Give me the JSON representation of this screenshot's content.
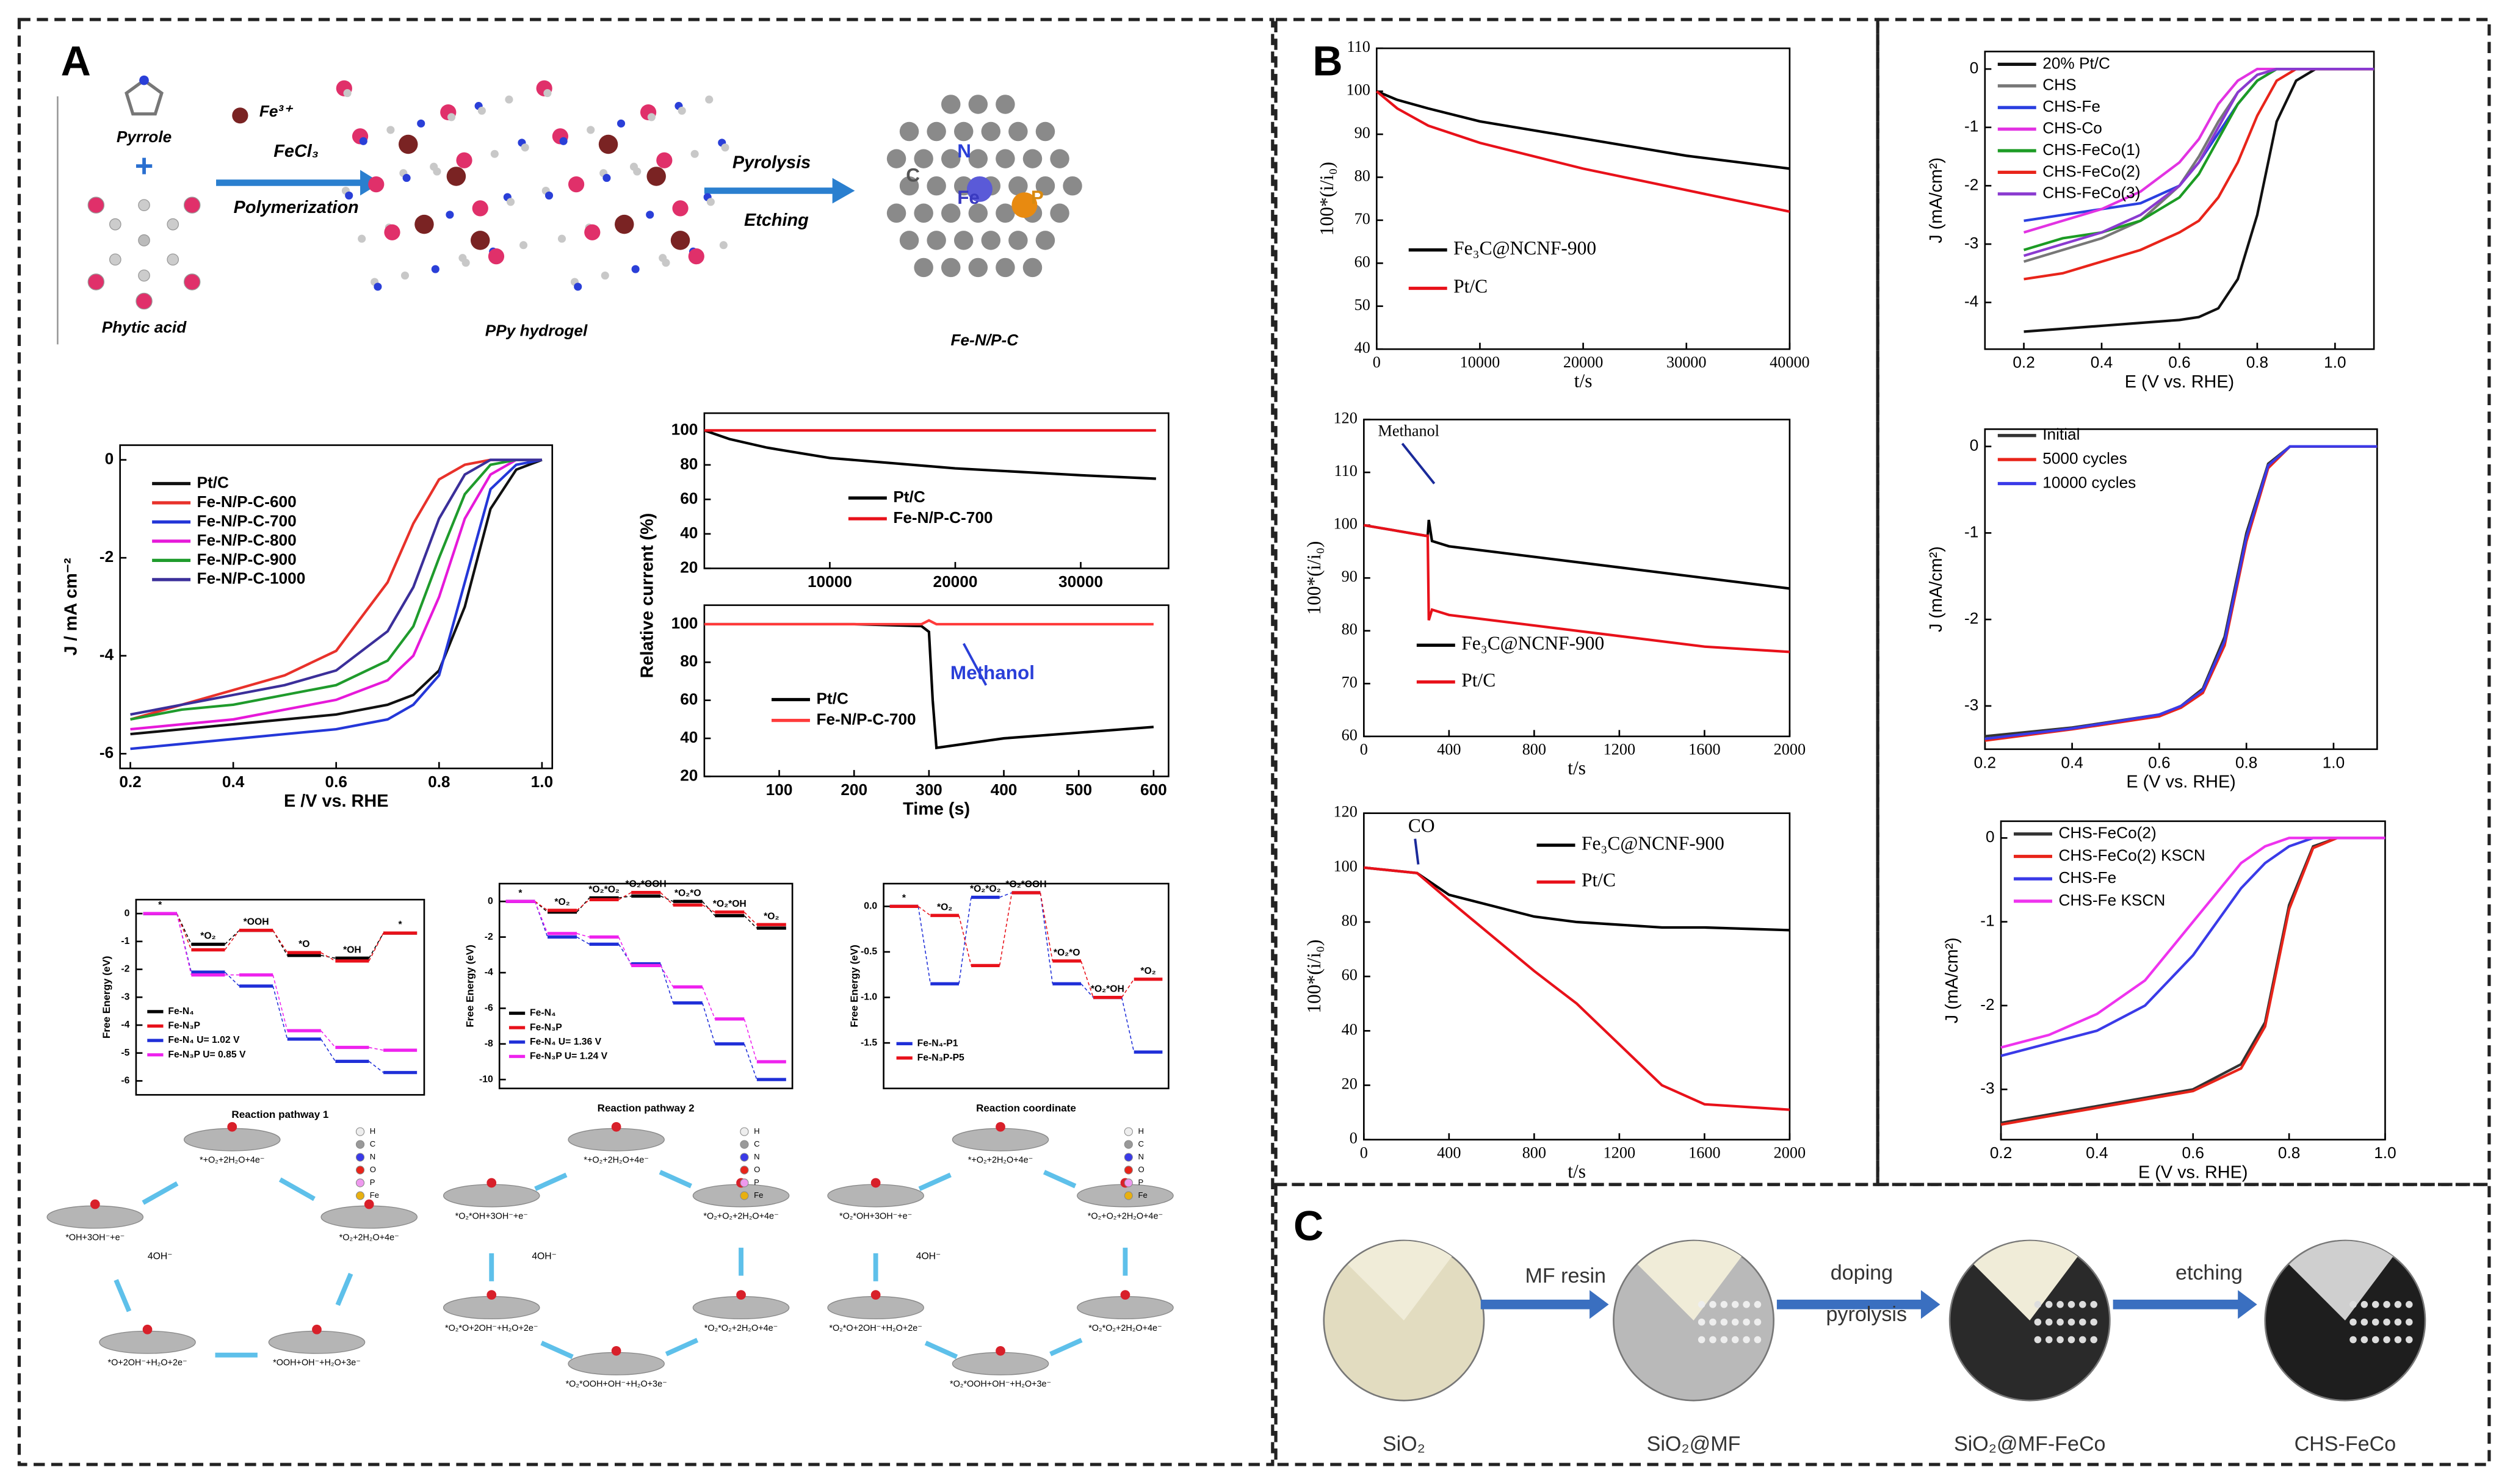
{
  "panel_labels": [
    "A",
    "B",
    "C"
  ],
  "scheme_a": {
    "pyrrole": "Pyrrole",
    "phytic_acid": "Phytic acid",
    "fe_ion": "Fe³⁺",
    "reagent": "FeCl₃",
    "step1": "Polymerization",
    "intermediate": "PPy hydrogel",
    "step2a": "Pyrolysis",
    "step2b": "Etching",
    "product": "Fe-N/P-C",
    "atoms": [
      "C",
      "N",
      "Fe",
      "P"
    ]
  },
  "elements": [
    "H",
    "C",
    "N",
    "O",
    "P",
    "Fe"
  ],
  "cycles": [
    {
      "center": "4OH⁻",
      "states": [
        "*+O₂+2H₂O+4e⁻",
        "*O₂+2H₂O+4e⁻",
        "*OOH+OH⁻+H₂O+3e⁻",
        "*O+2OH⁻+H₂O+2e⁻",
        "*OH+3OH⁻+e⁻"
      ]
    },
    {
      "center": "4OH⁻",
      "states": [
        "*+O₂+2H₂O+4e⁻",
        "*O₂+O₂+2H₂O+4e⁻",
        "*O₂*O₂+2H₂O+4e⁻",
        "*O₂*OOH+OH⁻+H₂O+3e⁻",
        "*O₂*O+2OH⁻+H₂O+2e⁻",
        "*O₂*OH+3OH⁻+e⁻"
      ]
    },
    {
      "center": "4OH⁻",
      "states": [
        "*+O₂+2H₂O+4e⁻",
        "*O₂+O₂+2H₂O+4e⁻",
        "*O₂*O₂+2H₂O+4e⁻",
        "*O₂*OOH+OH⁻+H₂O+3e⁻",
        "*O₂*O+2OH⁻+H₂O+2e⁻",
        "*O₂*OH+3OH⁻+e⁻"
      ]
    }
  ],
  "scheme_c": {
    "stages": [
      "SiO₂",
      "SiO₂@MF",
      "SiO₂@MF-FeCo",
      "CHS-FeCo"
    ],
    "steps": [
      "MF resin",
      "doping",
      "pyrolysis",
      "etching"
    ]
  },
  "chart_data": [
    {
      "type": "line",
      "xlabel": "E /V vs. RHE",
      "ylabel": "J / mA cm⁻²",
      "xlim": [
        0.18,
        1.02
      ],
      "ylim": [
        -6.3,
        0.3
      ],
      "xticks": [
        0.2,
        0.4,
        0.6,
        0.8,
        {
          "value": 1,
          "label": "1.0"
        }
      ],
      "yticks": [
        -6,
        -4,
        -2,
        0
      ],
      "x": [
        0.2,
        0.3,
        0.4,
        0.5,
        0.6,
        0.7,
        0.75,
        0.8,
        0.85,
        0.9,
        0.95,
        1.0
      ],
      "series": [
        {
          "name": "Pt/C",
          "color": "#111111",
          "values": [
            -5.6,
            -5.5,
            -5.4,
            -5.3,
            -5.2,
            -5.0,
            -4.8,
            -4.3,
            -3.0,
            -1.0,
            -0.2,
            0
          ]
        },
        {
          "name": "Fe-N/P-C-600",
          "color": "#e8312a",
          "values": [
            -5.3,
            -5.0,
            -4.7,
            -4.4,
            -3.9,
            -2.5,
            -1.3,
            -0.4,
            -0.1,
            0,
            0,
            0
          ]
        },
        {
          "name": "Fe-N/P-C-700",
          "color": "#2437d8",
          "values": [
            -5.9,
            -5.8,
            -5.7,
            -5.6,
            -5.5,
            -5.3,
            -5.0,
            -4.4,
            -2.5,
            -0.6,
            -0.1,
            0
          ]
        },
        {
          "name": "Fe-N/P-C-800",
          "color": "#e619d9",
          "values": [
            -5.5,
            -5.4,
            -5.3,
            -5.1,
            -4.9,
            -4.5,
            -4.0,
            -2.8,
            -1.2,
            -0.3,
            0,
            0
          ]
        },
        {
          "name": "Fe-N/P-C-900",
          "color": "#1f9b2c",
          "values": [
            -5.3,
            -5.1,
            -5.0,
            -4.8,
            -4.6,
            -4.1,
            -3.4,
            -2.0,
            -0.7,
            -0.1,
            0,
            0
          ]
        },
        {
          "name": "Fe-N/P-C-1000",
          "color": "#3b2f9a",
          "values": [
            -5.2,
            -5.0,
            -4.8,
            -4.6,
            -4.3,
            -3.5,
            -2.6,
            -1.2,
            -0.3,
            0,
            0,
            0
          ]
        }
      ],
      "legend": "upper left"
    },
    {
      "type": "line",
      "xlim": [
        0,
        37000
      ],
      "ylim": [
        20,
        110
      ],
      "xticks": [
        10000,
        20000,
        30000
      ],
      "yticks": [
        20,
        40,
        60,
        80,
        100
      ],
      "x": [
        0,
        2000,
        5000,
        10000,
        20000,
        30000,
        36000
      ],
      "series": [
        {
          "name": "Pt/C",
          "color": "#000000",
          "values": [
            100,
            95,
            90,
            84,
            78,
            74,
            72
          ]
        },
        {
          "name": "Fe-N/P-C-700",
          "color": "#e8111a",
          "values": [
            100,
            100,
            100,
            100,
            100,
            100,
            100
          ]
        }
      ],
      "legend": "center"
    },
    {
      "type": "line",
      "xlabel": "Time (s)",
      "ylabel": "Relative current (%)",
      "annotation": "Methanol",
      "xlim": [
        0,
        620
      ],
      "ylim": [
        20,
        110
      ],
      "xticks": [
        100,
        200,
        300,
        400,
        500,
        600
      ],
      "yticks": [
        20,
        40,
        60,
        80,
        100
      ],
      "x": [
        0,
        100,
        200,
        290,
        300,
        305,
        310,
        400,
        500,
        600
      ],
      "series": [
        {
          "name": "Pt/C",
          "color": "#000000",
          "values": [
            100,
            100,
            100,
            99,
            96,
            60,
            35,
            40,
            43,
            46
          ]
        },
        {
          "name": "Fe-N/P-C-700",
          "color": "#ff3b3b",
          "values": [
            100,
            100,
            100,
            100,
            102,
            101,
            100,
            100,
            100,
            100
          ]
        }
      ],
      "legend": "lower left"
    },
    {
      "type": "step",
      "xlabel": "Reaction pathway 1",
      "ylabel": "Free Energy (eV)",
      "ylim": [
        -6.5,
        0.5
      ],
      "yticks": [
        -6,
        -5,
        -4,
        -3,
        -2,
        -1,
        0
      ],
      "categories": [
        "*",
        "*O₂",
        "*OOH",
        "*O",
        "*OH",
        "*"
      ],
      "series": [
        {
          "name": "Fe-N₄",
          "color": "#000000",
          "values": [
            0,
            -1.1,
            -0.6,
            -1.5,
            -1.6,
            -0.7
          ]
        },
        {
          "name": "Fe-N₃P",
          "color": "#e8111a",
          "values": [
            0,
            -1.3,
            -0.6,
            -1.4,
            -1.7,
            -0.7
          ]
        },
        {
          "name": "Fe-N₄ U= 1.02 V",
          "color": "#1f2fd8",
          "values": [
            0,
            -2.1,
            -2.6,
            -4.5,
            -5.3,
            -5.7
          ]
        },
        {
          "name": "Fe-N₃P U= 0.85 V",
          "color": "#ee22ee",
          "values": [
            0,
            -2.2,
            -2.2,
            -4.2,
            -4.8,
            -4.9
          ]
        }
      ],
      "legend": "lower left"
    },
    {
      "type": "step",
      "xlabel": "Reaction pathway 2",
      "ylabel": "Free Energy (eV)",
      "ylim": [
        -10.5,
        1
      ],
      "yticks": [
        -10,
        -8,
        -6,
        -4,
        -2,
        0
      ],
      "categories": [
        "*",
        "*O₂",
        "*O₂*O₂",
        "*O₂*OOH",
        "*O₂*O",
        "*O₂*OH",
        "*O₂"
      ],
      "series": [
        {
          "name": "Fe-N₄",
          "color": "#000000",
          "values": [
            0,
            -0.6,
            0.2,
            0.3,
            0,
            -0.8,
            -1.5
          ]
        },
        {
          "name": "Fe-N₃P",
          "color": "#e8111a",
          "values": [
            0,
            -0.5,
            0.1,
            0.5,
            -0.2,
            -0.6,
            -1.3
          ]
        },
        {
          "name": "Fe-N₄ U= 1.36 V",
          "color": "#1f2fd8",
          "values": [
            0,
            -2.0,
            -2.4,
            -3.5,
            -5.7,
            -8.0,
            -10.0
          ]
        },
        {
          "name": "Fe-N₃P U= 1.24 V",
          "color": "#ee22ee",
          "values": [
            0,
            -1.8,
            -2.0,
            -3.6,
            -4.8,
            -6.6,
            -9.0
          ]
        }
      ],
      "legend": "lower left"
    },
    {
      "type": "step",
      "xlabel": "Reaction coordinate",
      "ylabel": "Free Energy (eV)",
      "ylim": [
        -2,
        0.25
      ],
      "yticks": [
        {
          "value": 0,
          "label": "0.0"
        },
        -0.5,
        {
          "value": -1,
          "label": "-1.0"
        },
        -1.5
      ],
      "categories": [
        "*",
        "*O₂",
        "*O₂*O₂",
        "*O₂*OOH",
        "*O₂*O",
        "*O₂*OH",
        "*O₂"
      ],
      "series": [
        {
          "name": "Fe-N₄-P1",
          "color": "#1f2fd8",
          "values": [
            0,
            -0.85,
            0.1,
            0.15,
            -0.85,
            -1.0,
            -1.6
          ]
        },
        {
          "name": "Fe-N₃P-P5",
          "color": "#e8111a",
          "values": [
            0,
            -0.1,
            -0.65,
            0.15,
            -0.6,
            -1.0,
            -0.8
          ]
        }
      ],
      "legend": "lower left"
    },
    {
      "type": "line",
      "xlabel": "t/s",
      "ylabel": "100*(i/i₀)",
      "xlim": [
        0,
        40000
      ],
      "ylim": [
        40,
        110
      ],
      "xticks": [
        0,
        10000,
        20000,
        30000,
        40000
      ],
      "yticks": [
        40,
        50,
        60,
        70,
        80,
        90,
        100,
        110
      ],
      "x": [
        0,
        2000,
        5000,
        10000,
        20000,
        30000,
        40000
      ],
      "series": [
        {
          "name": "Fe₃C@NCNF-900",
          "color": "#000000",
          "values": [
            100,
            98,
            96,
            93,
            89,
            85,
            82
          ]
        },
        {
          "name": "Pt/C",
          "color": "#e8111a",
          "values": [
            100,
            96,
            92,
            88,
            82,
            77,
            72
          ]
        }
      ],
      "legend": "lower left"
    },
    {
      "type": "line",
      "xlabel": "t/s",
      "ylabel": "100*(i/i₀)",
      "annotation": "Methanol",
      "xlim": [
        0,
        2000
      ],
      "ylim": [
        60,
        120
      ],
      "xticks": [
        0,
        400,
        800,
        1200,
        1600,
        2000
      ],
      "yticks": [
        60,
        70,
        80,
        90,
        100,
        110,
        120
      ],
      "x": [
        0,
        290,
        300,
        305,
        320,
        400,
        800,
        1200,
        1600,
        2000
      ],
      "series": [
        {
          "name": "Fe₃C@NCNF-900",
          "color": "#000000",
          "values": [
            100,
            98,
            98,
            101,
            97,
            96,
            94,
            92,
            90,
            88
          ]
        },
        {
          "name": "Pt/C",
          "color": "#e8111a",
          "values": [
            100,
            98,
            98,
            82,
            84,
            83,
            81,
            79,
            77,
            76
          ]
        }
      ],
      "legend": "lower left"
    },
    {
      "type": "line",
      "xlabel": "t/s",
      "ylabel": "100*(i/i₀)",
      "annotation": "CO",
      "xlim": [
        0,
        2000
      ],
      "ylim": [
        0,
        120
      ],
      "xticks": [
        0,
        400,
        800,
        1200,
        1600,
        2000
      ],
      "yticks": [
        0,
        20,
        40,
        60,
        80,
        100,
        120
      ],
      "x": [
        0,
        250,
        400,
        800,
        1000,
        1200,
        1400,
        1600,
        2000
      ],
      "series": [
        {
          "name": "Fe₃C@NCNF-900",
          "color": "#000000",
          "values": [
            100,
            98,
            90,
            82,
            80,
            79,
            78,
            78,
            77
          ]
        },
        {
          "name": "Pt/C",
          "color": "#e8111a",
          "values": [
            100,
            98,
            88,
            62,
            50,
            35,
            20,
            13,
            11
          ]
        }
      ],
      "legend": "upper right"
    },
    {
      "type": "line",
      "xlabel": "E (V vs. RHE)",
      "ylabel": "J (mA/cm²)",
      "xlim": [
        0.1,
        1.1
      ],
      "ylim": [
        -4.8,
        0.3
      ],
      "xticks": [
        0.2,
        0.4,
        0.6,
        0.8,
        {
          "value": 1,
          "label": "1.0"
        }
      ],
      "yticks": [
        -4,
        -3,
        -2,
        -1,
        0
      ],
      "x": [
        0.2,
        0.3,
        0.4,
        0.5,
        0.6,
        0.65,
        0.7,
        0.75,
        0.8,
        0.85,
        0.9,
        0.95,
        1.0,
        1.1
      ],
      "series": [
        {
          "name": "20% Pt/C",
          "color": "#111111",
          "values": [
            -4.5,
            -4.45,
            -4.4,
            -4.35,
            -4.3,
            -4.25,
            -4.1,
            -3.6,
            -2.5,
            -0.9,
            -0.2,
            0,
            0,
            0
          ]
        },
        {
          "name": "CHS",
          "color": "#777777",
          "values": [
            -3.3,
            -3.1,
            -2.9,
            -2.6,
            -2.0,
            -1.5,
            -0.9,
            -0.4,
            -0.1,
            0,
            0,
            0,
            0,
            0
          ]
        },
        {
          "name": "CHS-Fe",
          "color": "#2a3fe0",
          "values": [
            -2.6,
            -2.5,
            -2.4,
            -2.3,
            -2.0,
            -1.6,
            -1.1,
            -0.6,
            -0.2,
            0,
            0,
            0,
            0,
            0
          ]
        },
        {
          "name": "CHS-Co",
          "color": "#e233e2",
          "values": [
            -2.8,
            -2.6,
            -2.4,
            -2.1,
            -1.6,
            -1.2,
            -0.6,
            -0.2,
            0,
            0,
            0,
            0,
            0,
            0
          ]
        },
        {
          "name": "CHS-FeCo(1)",
          "color": "#1c9b24",
          "values": [
            -3.1,
            -2.9,
            -2.8,
            -2.6,
            -2.2,
            -1.8,
            -1.2,
            -0.6,
            -0.2,
            0,
            0,
            0,
            0,
            0
          ]
        },
        {
          "name": "CHS-FeCo(2)",
          "color": "#e8241a",
          "values": [
            -3.6,
            -3.5,
            -3.3,
            -3.1,
            -2.8,
            -2.6,
            -2.2,
            -1.6,
            -0.8,
            -0.2,
            0,
            0,
            0,
            0
          ]
        },
        {
          "name": "CHS-FeCo(3)",
          "color": "#8a3ad0",
          "values": [
            -3.2,
            -3.0,
            -2.8,
            -2.5,
            -2.0,
            -1.6,
            -1.0,
            -0.4,
            -0.1,
            0,
            0,
            0,
            0,
            0
          ]
        }
      ],
      "legend": "upper left"
    },
    {
      "type": "line",
      "xlabel": "E (V vs. RHE)",
      "ylabel": "J (mA/cm²)",
      "xlim": [
        0.2,
        1.1
      ],
      "ylim": [
        -3.5,
        0.2
      ],
      "xticks": [
        0.2,
        0.4,
        0.6,
        0.8,
        {
          "value": 1,
          "label": "1.0"
        }
      ],
      "yticks": [
        -3,
        -2,
        -1,
        0
      ],
      "x": [
        0.2,
        0.4,
        0.6,
        0.65,
        0.7,
        0.75,
        0.8,
        0.85,
        0.9,
        1.0,
        1.1
      ],
      "series": [
        {
          "name": "Initial",
          "color": "#333333",
          "values": [
            -3.35,
            -3.25,
            -3.1,
            -3.0,
            -2.8,
            -2.2,
            -1.0,
            -0.2,
            0,
            0,
            0
          ]
        },
        {
          "name": "5000 cycles",
          "color": "#e8241a",
          "values": [
            -3.4,
            -3.27,
            -3.12,
            -3.02,
            -2.85,
            -2.3,
            -1.1,
            -0.25,
            0,
            0,
            0
          ]
        },
        {
          "name": "10000 cycles",
          "color": "#3a3ae8",
          "values": [
            -3.38,
            -3.26,
            -3.1,
            -3.0,
            -2.82,
            -2.25,
            -1.05,
            -0.22,
            0,
            0,
            0
          ]
        }
      ],
      "legend": "upper left"
    },
    {
      "type": "line",
      "xlabel": "E (V vs. RHE)",
      "ylabel": "J (mA/cm²)",
      "xlim": [
        0.2,
        1.0
      ],
      "ylim": [
        -3.6,
        0.2
      ],
      "xticks": [
        0.2,
        0.4,
        0.6,
        0.8,
        {
          "value": 1,
          "label": "1.0"
        }
      ],
      "yticks": [
        -3,
        -2,
        -1,
        0
      ],
      "x": [
        0.2,
        0.3,
        0.4,
        0.5,
        0.6,
        0.7,
        0.75,
        0.8,
        0.85,
        0.9,
        1.0
      ],
      "series": [
        {
          "name": "CHS-FeCo(2)",
          "color": "#333333",
          "values": [
            -3.4,
            -3.3,
            -3.2,
            -3.1,
            -3.0,
            -2.7,
            -2.2,
            -0.8,
            -0.1,
            0,
            0
          ]
        },
        {
          "name": "CHS-FeCo(2) KSCN",
          "color": "#e8241a",
          "values": [
            -3.42,
            -3.32,
            -3.22,
            -3.12,
            -3.02,
            -2.75,
            -2.25,
            -0.85,
            -0.12,
            0,
            0
          ]
        },
        {
          "name": "CHS-Fe",
          "color": "#3a3ae8",
          "values": [
            -2.6,
            -2.45,
            -2.3,
            -2.0,
            -1.4,
            -0.6,
            -0.3,
            -0.1,
            0,
            0,
            0
          ]
        },
        {
          "name": "CHS-Fe KSCN",
          "color": "#ee33ee",
          "values": [
            -2.5,
            -2.35,
            -2.1,
            -1.7,
            -1.0,
            -0.3,
            -0.1,
            0,
            0,
            0,
            0
          ]
        }
      ],
      "legend": "upper left"
    }
  ]
}
